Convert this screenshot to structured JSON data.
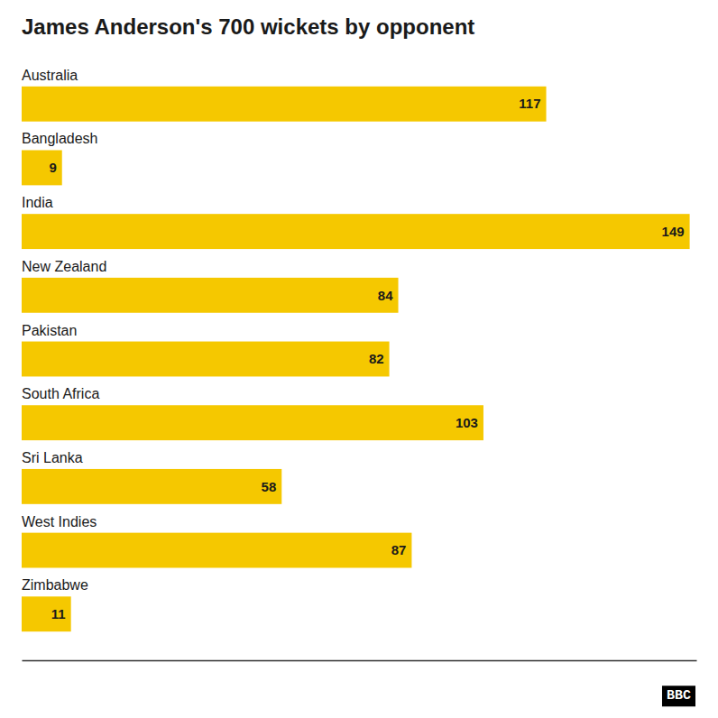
{
  "chart_data": {
    "type": "bar",
    "orientation": "horizontal",
    "title": "James Anderson's 700 wickets by opponent",
    "categories": [
      "Australia",
      "Bangladesh",
      "India",
      "New Zealand",
      "Pakistan",
      "South Africa",
      "Sri Lanka",
      "West Indies",
      "Zimbabwe"
    ],
    "values": [
      117,
      9,
      149,
      84,
      82,
      103,
      58,
      87,
      11
    ],
    "color": "#F5C800",
    "xlim": [
      0,
      150.49
    ],
    "data_labels": true,
    "tick_labels": false,
    "grid": false,
    "annotations": [
      "BBC"
    ]
  }
}
